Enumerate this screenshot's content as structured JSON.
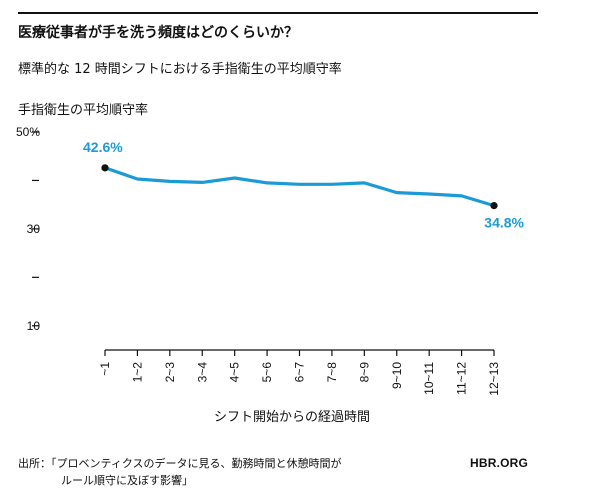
{
  "title": "医療従事者が手を洗う頻度はどのくらいか？",
  "subtitle": "標準的な 12 時間シフトにおける手指衛生の平均順守率",
  "source_line1": "出所：「プロベンティクスのデータに見る、勤務時間と休憩時間が",
  "source_line2": "ルール順守に及ぼす影響」",
  "brand": "HBR.ORG",
  "colors": {
    "line": "#1b9ad6",
    "marker": "#111111",
    "text": "#111111"
  },
  "chart_data": {
    "type": "line",
    "title": "医療従事者が手を洗う頻度はどのくらいか？",
    "subtitle": "標準的な 12 時間シフトにおける手指衛生の平均順守率",
    "xlabel": "シフト開始からの経過時間",
    "ylabel": "手指衛生の平均順守率",
    "categories": [
      "~1",
      "1~2",
      "2~3",
      "3~4",
      "4~5",
      "5~6",
      "6~7",
      "7~8",
      "8~9",
      "9~10",
      "10~11",
      "11~12",
      "12~13"
    ],
    "values": [
      42.6,
      40.3,
      39.8,
      39.6,
      40.5,
      39.5,
      39.2,
      39.2,
      39.5,
      37.5,
      37.2,
      36.8,
      34.8
    ],
    "ylim": [
      5,
      50
    ],
    "y_ticks": [
      {
        "value": 50,
        "label": "50%"
      },
      {
        "value": 40,
        "label": ""
      },
      {
        "value": 30,
        "label": "30"
      },
      {
        "value": 20,
        "label": ""
      },
      {
        "value": 10,
        "label": "10"
      }
    ],
    "data_labels": [
      {
        "index": 0,
        "text": "42.6%"
      },
      {
        "index": 12,
        "text": "34.8%"
      }
    ],
    "grid": false,
    "legend": "none"
  }
}
